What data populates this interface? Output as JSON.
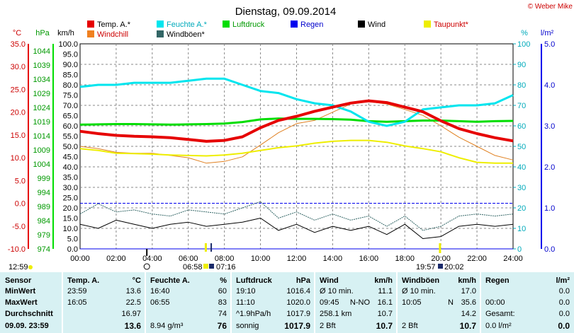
{
  "header": {
    "title": "Dienstag, 09.09.2014",
    "copyright": "© Weber Mike"
  },
  "legend": [
    {
      "label": "Temp. A.*",
      "color": "#e60000"
    },
    {
      "label": "Feuchte A.*",
      "color": "#00e5ee"
    },
    {
      "label": "Luftdruck",
      "color": "#00dd00"
    },
    {
      "label": "Regen",
      "color": "#0000ee"
    },
    {
      "label": "Wind",
      "color": "#000000"
    },
    {
      "label": "Taupunkt*",
      "color": "#eeee00"
    },
    {
      "label": "Windchill",
      "color": "#f08020"
    },
    {
      "label": "Windböen*",
      "color": "#336666"
    }
  ],
  "axis_units": {
    "temp": "°C",
    "press": "hPa",
    "wind": "km/h",
    "hum": "%",
    "rain": "l/m²"
  },
  "ticks": {
    "temp": [
      "35.0",
      "30.0",
      "25.0",
      "20.0",
      "15.0",
      "10.0",
      "5.0",
      "0.0",
      "-5.0",
      "-10.0"
    ],
    "press": [
      "1044",
      "1039",
      "1034",
      "1029",
      "1024",
      "1019",
      "1014",
      "1009",
      "1004",
      "999",
      "994",
      "989",
      "984",
      "979",
      "974"
    ],
    "wind": [
      "100.0",
      "95.0",
      "90.0",
      "85.0",
      "80.0",
      "75.0",
      "70.0",
      "65.0",
      "60.0",
      "55.0",
      "50.0",
      "45.0",
      "40.0",
      "35.0",
      "30.0",
      "25.0",
      "20.0",
      "15.0",
      "10.0",
      "5.0",
      "0.0"
    ],
    "hum": [
      "100",
      "90",
      "80",
      "70",
      "60",
      "50",
      "40",
      "30",
      "20",
      "10",
      "0"
    ],
    "rain": [
      "5.0",
      "4.0",
      "3.0",
      "2.0",
      "1.0",
      "0.0"
    ],
    "x": [
      "00:00",
      "02:00",
      "04:00",
      "06:00",
      "08:00",
      "10:00",
      "12:00",
      "14:00",
      "16:00",
      "18:00",
      "20:00",
      "22:00",
      "24:00"
    ]
  },
  "sun_moon": {
    "moonset": "12:59",
    "sunrise": "06:58",
    "transit": "07:16",
    "sunset": "19:57",
    "sunset2": "20:02"
  },
  "chart_data": {
    "type": "line",
    "x_unit": "hours",
    "xlim": [
      0,
      24
    ],
    "ylim_wind": [
      0,
      100
    ],
    "ylim_temp": [
      -10,
      35
    ],
    "ylim_hum": [
      0,
      100
    ],
    "ylim_press": [
      974,
      1044
    ],
    "ylim_rain": [
      0,
      5
    ],
    "series": [
      {
        "name": "Temp. A.*",
        "color": "#e60000",
        "axis": "temp",
        "width": 4,
        "x": [
          0,
          1,
          2,
          3,
          4,
          5,
          6,
          7,
          8,
          9,
          10,
          11,
          12,
          13,
          14,
          15,
          16,
          17,
          18,
          19,
          20,
          21,
          22,
          23,
          24
        ],
        "y": [
          15.8,
          15.3,
          14.9,
          14.7,
          14.6,
          14.4,
          14.0,
          13.6,
          13.8,
          14.6,
          16.6,
          18.2,
          19.1,
          20.2,
          21.1,
          22.0,
          22.5,
          22.1,
          21.1,
          20.1,
          18.1,
          16.4,
          15.3,
          14.4,
          13.7
        ]
      },
      {
        "name": "Windchill",
        "color": "#e08020",
        "axis": "temp",
        "width": 1,
        "x": [
          0,
          1,
          2,
          3,
          4,
          5,
          6,
          7,
          8,
          9,
          10,
          11,
          12,
          13,
          14,
          15,
          16,
          17,
          18,
          19,
          20,
          21,
          22,
          23,
          24
        ],
        "y": [
          12.5,
          12.0,
          11.2,
          11.0,
          11.0,
          10.5,
          10.0,
          8.8,
          9.2,
          10.2,
          12.8,
          15.5,
          17.5,
          18.2,
          20.0,
          21.8,
          22.3,
          21.8,
          20.6,
          19.3,
          17.0,
          14.5,
          12.5,
          10.5,
          9.5
        ]
      },
      {
        "name": "Feuchte A.*",
        "color": "#00e5ee",
        "axis": "hum",
        "width": 3,
        "x": [
          0,
          1,
          2,
          3,
          4,
          5,
          6,
          7,
          8,
          9,
          10,
          11,
          12,
          13,
          14,
          15,
          16,
          17,
          18,
          19,
          20,
          21,
          22,
          23,
          24
        ],
        "y": [
          79,
          80,
          80,
          81,
          81,
          81,
          82,
          83,
          83,
          80,
          77,
          76,
          73,
          71,
          70,
          67,
          62,
          60,
          62,
          68,
          69,
          70,
          70,
          71,
          75
        ]
      },
      {
        "name": "Luftdruck",
        "color": "#00dd00",
        "axis": "press",
        "width": 3,
        "x": [
          0,
          1,
          2,
          3,
          4,
          5,
          6,
          7,
          8,
          9,
          10,
          11,
          12,
          13,
          14,
          15,
          16,
          17,
          18,
          19,
          20,
          21,
          22,
          23,
          24
        ],
        "y": [
          1016.4,
          1016.5,
          1016.6,
          1016.6,
          1016.5,
          1016.4,
          1016.5,
          1016.6,
          1016.8,
          1017.3,
          1018.2,
          1018.5,
          1018.4,
          1018.4,
          1018.3,
          1018.1,
          1017.6,
          1017.4,
          1017.6,
          1017.8,
          1017.8,
          1017.6,
          1017.4,
          1017.6,
          1017.7
        ]
      },
      {
        "name": "Taupunkt*",
        "color": "#eeee00",
        "axis": "temp",
        "width": 2,
        "x": [
          0,
          1,
          2,
          3,
          4,
          5,
          6,
          7,
          8,
          9,
          10,
          11,
          12,
          13,
          14,
          15,
          16,
          17,
          18,
          19,
          20,
          21,
          22,
          23,
          24
        ],
        "y": [
          12.0,
          11.6,
          11.0,
          10.9,
          10.8,
          10.6,
          10.5,
          10.4,
          10.6,
          11.0,
          11.6,
          12.2,
          12.6,
          13.2,
          13.6,
          13.8,
          13.8,
          13.4,
          12.6,
          12.0,
          11.3,
          10.0,
          9.0,
          8.8,
          8.8
        ]
      },
      {
        "name": "Wind",
        "color": "#000000",
        "axis": "wind",
        "width": 1,
        "x": [
          0,
          1,
          2,
          3,
          4,
          5,
          6,
          7,
          8,
          9,
          10,
          11,
          12,
          13,
          14,
          15,
          16,
          17,
          18,
          19,
          20,
          21,
          22,
          23,
          24
        ],
        "y": [
          12,
          10,
          14,
          12,
          10,
          12,
          13,
          11,
          12,
          13,
          15,
          9,
          12,
          8,
          11,
          9,
          11,
          7,
          12,
          5,
          6,
          11,
          12,
          11,
          12
        ]
      },
      {
        "name": "Windböen*",
        "color": "#336666",
        "axis": "wind",
        "width": 1,
        "x": [
          0,
          1,
          2,
          3,
          4,
          5,
          6,
          7,
          8,
          9,
          10,
          11,
          12,
          13,
          14,
          15,
          16,
          17,
          18,
          19,
          20,
          21,
          22,
          23,
          24
        ],
        "y": [
          17,
          22,
          18,
          19,
          17,
          16,
          19,
          18,
          17,
          20,
          23,
          15,
          18,
          14,
          17,
          14,
          16,
          11,
          16,
          9,
          11,
          16,
          17,
          16,
          17
        ]
      },
      {
        "name": "Regen",
        "color": "#0000ee",
        "axis": "rain",
        "width": 1,
        "x": [
          0,
          24
        ],
        "y": [
          0.0,
          0.0
        ]
      }
    ]
  },
  "table": {
    "columns": [
      {
        "head": "Sensor",
        "unit": "",
        "rows": [
          {
            "label": "MinWert",
            "time": "",
            "value": ""
          },
          {
            "label": "MaxWert",
            "time": "",
            "value": ""
          },
          {
            "label": "Durchschnitt",
            "time": "",
            "value": ""
          }
        ],
        "footer": {
          "left": "09.09. 23:59",
          "value": ""
        }
      },
      {
        "head": "Temp. A.",
        "unit": "°C",
        "rows": [
          {
            "time": "23:59",
            "value": "13.6"
          },
          {
            "time": "16:05",
            "value": "22.5"
          },
          {
            "time": "",
            "value": "16.97"
          }
        ],
        "footer": {
          "left": "",
          "value": "13.6"
        }
      },
      {
        "head": "Feuchte A.",
        "unit": "%",
        "rows": [
          {
            "time": "16:40",
            "value": "60"
          },
          {
            "time": "06:55",
            "value": "83"
          },
          {
            "time": "",
            "value": "74"
          }
        ],
        "footer": {
          "left": "8.94 g/m³",
          "value": "76"
        }
      },
      {
        "head": "Luftdruck",
        "unit": "hPa",
        "rows": [
          {
            "time": "19:10",
            "value": "1016.4"
          },
          {
            "time": "11:10",
            "value": "1020.0"
          },
          {
            "time": "^1.9hPa/h",
            "value": "1017.9"
          }
        ],
        "footer": {
          "left": "sonnig",
          "value": "1017.9"
        }
      },
      {
        "head": "Wind",
        "unit": "km/h",
        "rows": [
          {
            "time": "Ø 10 min.",
            "extra": "",
            "value": "11.1"
          },
          {
            "time": "09:45",
            "extra": "N-NO",
            "value": "16.1"
          },
          {
            "time": "258.1 km",
            "extra": "",
            "value": "10.7"
          }
        ],
        "footer": {
          "left": "2 Bft",
          "value": "10.7"
        }
      },
      {
        "head": "Windböen",
        "unit": "km/h",
        "rows": [
          {
            "time": "Ø 10 min.",
            "extra": "",
            "value": "17.0"
          },
          {
            "time": "10:05",
            "extra": "N",
            "value": "35.6"
          },
          {
            "time": "",
            "extra": "",
            "value": "14.2"
          }
        ],
        "footer": {
          "left": "2 Bft",
          "value": "10.7"
        }
      },
      {
        "head": "Regen",
        "unit": "l/m²",
        "rows": [
          {
            "time": "",
            "value": "0.0"
          },
          {
            "time": "00:00",
            "value": "0.0"
          },
          {
            "time": "Gesamt:",
            "value": "0.0"
          }
        ],
        "footer": {
          "left": "0.0 l/m²",
          "value": "0.0"
        }
      }
    ]
  }
}
